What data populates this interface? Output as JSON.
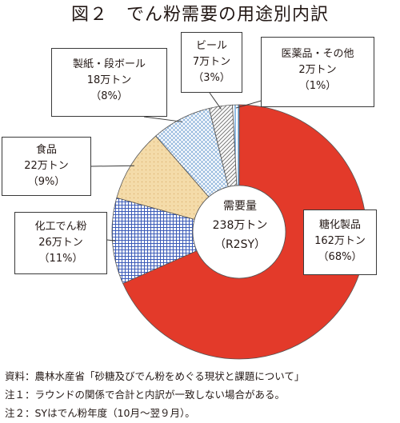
{
  "title": "図２　でん粉需要の用途別内訳",
  "center": {
    "line1": "需要量",
    "line2": "238万トン",
    "line3": "（R2SY）"
  },
  "colors": {
    "sugar": "#e33a2a",
    "starch_chem": "#3b5bb8",
    "food": "#f3d7a3",
    "paper": "#4f86c4",
    "beer": "#8a8a8a",
    "medical": "#5aa0d8"
  },
  "chart_data": {
    "type": "pie",
    "unit": "万トン",
    "total": 238,
    "series": [
      {
        "name": "糖化製品",
        "value": 162,
        "percent": 68
      },
      {
        "name": "化工でん粉",
        "value": 26,
        "percent": 11
      },
      {
        "name": "食品",
        "value": 22,
        "percent": 9
      },
      {
        "name": "製紙・段ボール",
        "value": 18,
        "percent": 8
      },
      {
        "name": "ビール",
        "value": 7,
        "percent": 3
      },
      {
        "name": "医薬品・その他",
        "value": 2,
        "percent": 1
      }
    ]
  },
  "labels": [
    {
      "name": "糖化製品",
      "amount": "162万トン",
      "pct": "（68%）"
    },
    {
      "name": "化工でん粉",
      "amount": "26万トン",
      "pct": "（11%）"
    },
    {
      "name": "食品",
      "amount": "22万トン",
      "pct": "（9%）"
    },
    {
      "name": "製紙・段ボール",
      "amount": "18万トン",
      "pct": "（8%）"
    },
    {
      "name": "ビール",
      "amount": "7万トン",
      "pct": "（3%）"
    },
    {
      "name": "医薬品・その他",
      "amount": "2万トン",
      "pct": "（1%）"
    }
  ],
  "notes": [
    "資料：農林水産省「砂糖及びでん粉をめぐる現状と課題について」",
    "注１：ラウンドの関係で合計と内訳が一致しない場合がある。",
    "注２：SYはでん粉年度（10月～翌９月）。"
  ]
}
